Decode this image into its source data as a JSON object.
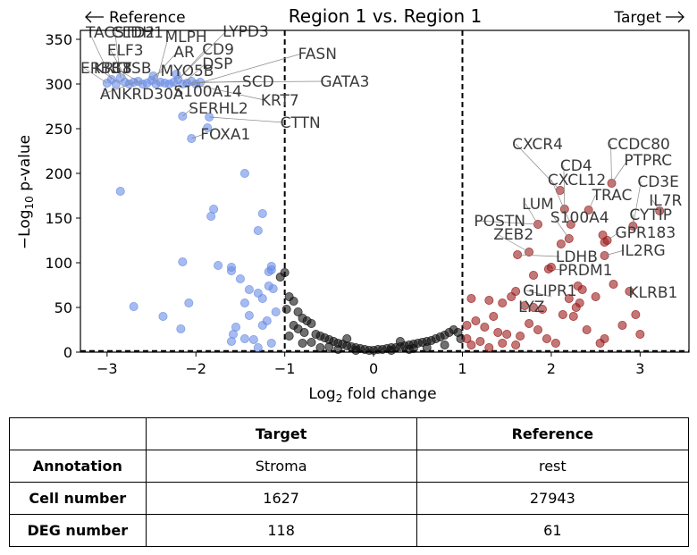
{
  "chart_data": {
    "type": "scatter",
    "title": "Region 1 vs. Region 1",
    "xlabel": "Log2 fold change",
    "ylabel": "−Log10 p-value",
    "xlim": [
      -3.3,
      3.55
    ],
    "ylim": [
      0,
      360
    ],
    "xticks": [
      "−3",
      "−2",
      "−1",
      "0",
      "1",
      "2",
      "3"
    ],
    "xtick_values": [
      -3,
      -2,
      -1,
      0,
      1,
      2,
      3
    ],
    "yticks": [
      "0",
      "50",
      "100",
      "150",
      "200",
      "250",
      "300",
      "350"
    ],
    "ytick_values": [
      0,
      50,
      100,
      150,
      200,
      250,
      300,
      350
    ],
    "thresholds": {
      "fold_change": [
        -1,
        1
      ],
      "pvalue_y": 1.3
    },
    "direction_labels": {
      "left": "Reference",
      "right": "Target"
    },
    "colors": {
      "reference": "#6b8ee6",
      "target": "#9b1c1c",
      "nonsig": "#111111",
      "label": "#3a3a3a"
    },
    "series": [
      {
        "color": "#6b8ee6",
        "points": [
          [
            -3.0,
            301
          ],
          [
            -2.95,
            305
          ],
          [
            -2.9,
            300
          ],
          [
            -2.85,
            307
          ],
          [
            -2.8,
            302
          ],
          [
            -2.75,
            300
          ],
          [
            -2.7,
            302
          ],
          [
            -2.65,
            303
          ],
          [
            -2.6,
            300
          ],
          [
            -2.55,
            301
          ],
          [
            -2.5,
            304
          ],
          [
            -2.45,
            300
          ],
          [
            -2.4,
            302
          ],
          [
            -2.35,
            301
          ],
          [
            -2.3,
            300
          ],
          [
            -2.25,
            302
          ],
          [
            -2.2,
            305
          ],
          [
            -2.15,
            300
          ],
          [
            -2.1,
            301
          ],
          [
            -2.05,
            303
          ],
          [
            -2.0,
            300
          ],
          [
            -1.95,
            302
          ],
          [
            -2.48,
            309
          ],
          [
            -2.22,
            311
          ],
          [
            -2.15,
            264
          ],
          [
            -2.05,
            239
          ],
          [
            -1.85,
            263
          ],
          [
            -1.87,
            251
          ],
          [
            -1.45,
            200
          ],
          [
            -2.85,
            180
          ],
          [
            -1.8,
            160
          ],
          [
            -1.83,
            152
          ],
          [
            -1.25,
            155
          ],
          [
            -1.3,
            136
          ],
          [
            -2.15,
            101
          ],
          [
            -1.75,
            97
          ],
          [
            -1.6,
            95
          ],
          [
            -1.6,
            91
          ],
          [
            -1.15,
            96
          ],
          [
            -1.15,
            92
          ],
          [
            -1.18,
            90
          ],
          [
            -1.5,
            82
          ],
          [
            -1.18,
            74
          ],
          [
            -1.13,
            71
          ],
          [
            -1.4,
            70
          ],
          [
            -1.3,
            66
          ],
          [
            -1.25,
            60
          ],
          [
            -1.45,
            55
          ],
          [
            -2.08,
            55
          ],
          [
            -2.7,
            51
          ],
          [
            -1.1,
            45
          ],
          [
            -2.37,
            40
          ],
          [
            -1.4,
            41
          ],
          [
            -1.55,
            28
          ],
          [
            -2.17,
            26
          ],
          [
            -1.2,
            35
          ],
          [
            -1.25,
            30
          ],
          [
            -1.58,
            20
          ],
          [
            -1.6,
            12
          ],
          [
            -1.35,
            14
          ],
          [
            -1.15,
            10
          ],
          [
            -1.3,
            5
          ],
          [
            -1.45,
            15
          ]
        ]
      },
      {
        "color": "#111111",
        "points": [
          [
            -1.0,
            89
          ],
          [
            -1.05,
            84
          ],
          [
            -0.95,
            62
          ],
          [
            -0.9,
            57
          ],
          [
            -0.98,
            48
          ],
          [
            -0.85,
            45
          ],
          [
            -0.8,
            38
          ],
          [
            -0.75,
            35
          ],
          [
            -0.7,
            32
          ],
          [
            -0.9,
            30
          ],
          [
            -0.85,
            26
          ],
          [
            -0.78,
            22
          ],
          [
            -0.65,
            20
          ],
          [
            -0.6,
            18
          ],
          [
            -0.55,
            16
          ],
          [
            -0.95,
            18
          ],
          [
            -0.5,
            14
          ],
          [
            -0.45,
            12
          ],
          [
            -0.4,
            10
          ],
          [
            -0.35,
            9
          ],
          [
            -0.7,
            11
          ],
          [
            -0.3,
            7
          ],
          [
            -0.25,
            6
          ],
          [
            -0.2,
            5
          ],
          [
            -0.15,
            4
          ],
          [
            -0.1,
            3
          ],
          [
            -0.05,
            2
          ],
          [
            0.0,
            2
          ],
          [
            0.05,
            3
          ],
          [
            0.1,
            3
          ],
          [
            0.15,
            4
          ],
          [
            0.2,
            5
          ],
          [
            0.25,
            5
          ],
          [
            0.3,
            6
          ],
          [
            0.35,
            7
          ],
          [
            0.4,
            8
          ],
          [
            0.45,
            9
          ],
          [
            0.5,
            10
          ],
          [
            0.55,
            11
          ],
          [
            0.6,
            12
          ],
          [
            0.65,
            13
          ],
          [
            0.7,
            15
          ],
          [
            0.75,
            17
          ],
          [
            0.8,
            19
          ],
          [
            0.85,
            22
          ],
          [
            0.9,
            25
          ],
          [
            0.95,
            22
          ],
          [
            0.98,
            15
          ],
          [
            -0.6,
            5
          ],
          [
            -0.4,
            3
          ],
          [
            -0.2,
            2
          ],
          [
            0.2,
            2
          ],
          [
            0.4,
            3
          ],
          [
            0.6,
            5
          ],
          [
            0.8,
            8
          ],
          [
            -0.8,
            10
          ],
          [
            -0.5,
            6
          ],
          [
            0.3,
            12
          ],
          [
            0.45,
            4
          ],
          [
            -0.3,
            15
          ]
        ]
      },
      {
        "color": "#9b1c1c",
        "points": [
          [
            2.1,
            181
          ],
          [
            2.68,
            189
          ],
          [
            2.15,
            160
          ],
          [
            2.42,
            159
          ],
          [
            1.85,
            143
          ],
          [
            2.22,
            143
          ],
          [
            2.2,
            127
          ],
          [
            2.11,
            121
          ],
          [
            2.58,
            131
          ],
          [
            2.92,
            141
          ],
          [
            3.22,
            158
          ],
          [
            2.63,
            125
          ],
          [
            2.6,
            123
          ],
          [
            2.6,
            108
          ],
          [
            1.75,
            112
          ],
          [
            1.62,
            109
          ],
          [
            1.97,
            93
          ],
          [
            2.0,
            95
          ],
          [
            1.8,
            86
          ],
          [
            2.7,
            76
          ],
          [
            2.88,
            68
          ],
          [
            2.3,
            74
          ],
          [
            2.35,
            70
          ],
          [
            2.2,
            60
          ],
          [
            2.5,
            62
          ],
          [
            2.32,
            55
          ],
          [
            2.28,
            50
          ],
          [
            2.13,
            42
          ],
          [
            2.25,
            40
          ],
          [
            1.1,
            60
          ],
          [
            1.3,
            58
          ],
          [
            1.45,
            55
          ],
          [
            1.6,
            68
          ],
          [
            1.55,
            62
          ],
          [
            1.7,
            52
          ],
          [
            1.8,
            50
          ],
          [
            1.9,
            48
          ],
          [
            1.05,
            30
          ],
          [
            1.15,
            35
          ],
          [
            1.25,
            28
          ],
          [
            1.35,
            40
          ],
          [
            1.4,
            22
          ],
          [
            1.5,
            20
          ],
          [
            1.65,
            18
          ],
          [
            1.75,
            32
          ],
          [
            1.85,
            25
          ],
          [
            1.95,
            15
          ],
          [
            2.05,
            10
          ],
          [
            2.4,
            25
          ],
          [
            2.6,
            15
          ],
          [
            2.8,
            30
          ],
          [
            3.0,
            20
          ],
          [
            2.55,
            10
          ],
          [
            1.2,
            12
          ],
          [
            1.1,
            8
          ],
          [
            1.3,
            5
          ],
          [
            1.45,
            10
          ],
          [
            1.6,
            8
          ],
          [
            1.05,
            15
          ],
          [
            2.95,
            42
          ]
        ]
      }
    ],
    "gene_labels": [
      {
        "text": "TACSTD2",
        "point": [
          -2.95,
          305
        ],
        "pos": [
          -3.24,
          352
        ]
      },
      {
        "text": "CLDH1",
        "point": [
          -2.85,
          307
        ],
        "pos": [
          -2.95,
          352
        ]
      },
      {
        "text": "MLPH",
        "point": [
          -2.45,
          300
        ],
        "pos": [
          -2.35,
          347
        ]
      },
      {
        "text": "LYPD3",
        "point": [
          -2.2,
          305
        ],
        "pos": [
          -1.7,
          353
        ]
      },
      {
        "text": "ELF3",
        "point": [
          -2.75,
          300
        ],
        "pos": [
          -3.0,
          332
        ]
      },
      {
        "text": "AR",
        "point": [
          -2.5,
          304
        ],
        "pos": [
          -2.25,
          330
        ]
      },
      {
        "text": "CD9",
        "point": [
          -2.2,
          305
        ],
        "pos": [
          -1.93,
          333
        ]
      },
      {
        "text": "FASN",
        "point": [
          -2.0,
          300
        ],
        "pos": [
          -0.85,
          328
        ]
      },
      {
        "text": "DSP",
        "point": [
          -2.15,
          300
        ],
        "pos": [
          -1.93,
          317
        ]
      },
      {
        "text": "ERBB3",
        "point": [
          -3.0,
          301
        ],
        "pos": [
          -3.3,
          312
        ]
      },
      {
        "text": "KRT8",
        "point": [
          -2.85,
          300
        ],
        "pos": [
          -3.15,
          312
        ]
      },
      {
        "text": "CTSB",
        "point": [
          -2.6,
          300
        ],
        "pos": [
          -2.95,
          312
        ]
      },
      {
        "text": "MYO5B",
        "point": [
          -2.48,
          309
        ],
        "pos": [
          -2.4,
          309
        ]
      },
      {
        "text": "SCD",
        "point": [
          -2.1,
          301
        ],
        "pos": [
          -1.48,
          297
        ]
      },
      {
        "text": "GATA3",
        "point": [
          -1.95,
          302
        ],
        "pos": [
          -0.6,
          297
        ]
      },
      {
        "text": "ANKRD30A",
        "point": [
          -2.65,
          303
        ],
        "pos": [
          -3.08,
          283
        ]
      },
      {
        "text": "S100A14",
        "point": [
          -2.25,
          302
        ],
        "pos": [
          -2.25,
          286
        ]
      },
      {
        "text": "KRT7",
        "point": [
          -2.05,
          300
        ],
        "pos": [
          -1.27,
          276
        ]
      },
      {
        "text": "SERHL2",
        "point": [
          -2.15,
          264
        ],
        "pos": [
          -2.08,
          267
        ]
      },
      {
        "text": "CTTN",
        "point": [
          -1.85,
          263
        ],
        "pos": [
          -1.05,
          251
        ]
      },
      {
        "text": "FOXA1",
        "point": [
          -2.05,
          239
        ],
        "pos": [
          -1.95,
          238
        ]
      },
      {
        "text": "CXCR4",
        "point": [
          2.1,
          181
        ],
        "pos": [
          1.56,
          227
        ]
      },
      {
        "text": "CCDC80",
        "point": [
          2.68,
          189
        ],
        "pos": [
          2.63,
          227
        ]
      },
      {
        "text": "CD4",
        "point": [
          2.15,
          160
        ],
        "pos": [
          2.1,
          203
        ]
      },
      {
        "text": "PTPRC",
        "point": [
          2.68,
          189
        ],
        "pos": [
          2.82,
          209
        ]
      },
      {
        "text": "CXCL12",
        "point": [
          2.22,
          143
        ],
        "pos": [
          1.96,
          187
        ]
      },
      {
        "text": "CD3E",
        "point": [
          2.92,
          141
        ],
        "pos": [
          2.97,
          185
        ]
      },
      {
        "text": "TRAC",
        "point": [
          2.42,
          159
        ],
        "pos": [
          2.46,
          170
        ]
      },
      {
        "text": "IL7R",
        "point": [
          3.22,
          158
        ],
        "pos": [
          3.1,
          164
        ]
      },
      {
        "text": "LUM",
        "point": [
          1.85,
          143
        ],
        "pos": [
          1.67,
          160
        ]
      },
      {
        "text": "S100A4",
        "point": [
          2.2,
          127
        ],
        "pos": [
          1.99,
          145
        ]
      },
      {
        "text": "CYTIP",
        "point": [
          2.92,
          141
        ],
        "pos": [
          2.88,
          148
        ]
      },
      {
        "text": "POSTN",
        "point": [
          1.85,
          143
        ],
        "pos": [
          1.13,
          141
        ]
      },
      {
        "text": "GPR183",
        "point": [
          2.63,
          125
        ],
        "pos": [
          2.72,
          128
        ]
      },
      {
        "text": "ZEB2",
        "point": [
          1.75,
          112
        ],
        "pos": [
          1.35,
          126
        ]
      },
      {
        "text": "IL2RG",
        "point": [
          2.6,
          108
        ],
        "pos": [
          2.78,
          108
        ]
      },
      {
        "text": "LDHB",
        "point": [
          1.62,
          109
        ],
        "pos": [
          2.05,
          101
        ]
      },
      {
        "text": "PRDM1",
        "point": [
          1.97,
          93
        ],
        "pos": [
          2.08,
          86
        ]
      },
      {
        "text": "KLRB1",
        "point": [
          2.88,
          68
        ],
        "pos": [
          2.87,
          61
        ]
      },
      {
        "text": "GLIPR1",
        "point": [
          2.0,
          62
        ],
        "pos": [
          1.68,
          63
        ]
      },
      {
        "text": "LYZ",
        "point": [
          1.8,
          50
        ],
        "pos": [
          1.63,
          45
        ]
      }
    ]
  },
  "table": {
    "headers": [
      "",
      "Target",
      "Reference"
    ],
    "rows": [
      {
        "label": "Annotation",
        "target": "Stroma",
        "reference": "rest"
      },
      {
        "label": "Cell number",
        "target": "1627",
        "reference": "27943"
      },
      {
        "label": "DEG number",
        "target": "118",
        "reference": "61"
      }
    ]
  }
}
